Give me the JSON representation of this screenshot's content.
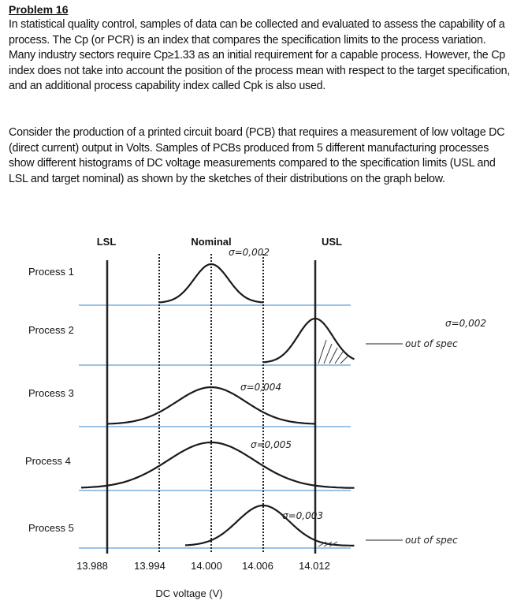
{
  "problem_title": "Problem 16",
  "paragraphs": [
    "In statistical quality control, samples of data can be collected and evaluated to assess the capability of a process. The Cp (or PCR) is an index that compares the specification limits to the process variation.  Many industry sectors require Cp≥1.33 as an initial requirement for a capable process. However, the Cp index does not take into account the position of the process mean with respect to the target specification, and an additional process capability index called Cpk is also used.",
    "Consider the production of a printed circuit board (PCB) that requires a measurement of low voltage DC (direct current) output in Volts.  Samples of PCBs produced from 5 different manufacturing processes show different histograms of DC voltage measurements compared to the specification limits (USL and LSL and target nominal) as shown by the sketches of their distributions on the graph below."
  ],
  "chart_data": {
    "type": "line",
    "xlabel": "DC voltage (V)",
    "x_ticks": [
      "13.988",
      "13.994",
      "14.000",
      "14.006",
      "14.012"
    ],
    "xlim": [
      13.985,
      14.016
    ],
    "spec_lines": [
      {
        "label": "LSL",
        "value": 13.988,
        "style": "solid"
      },
      {
        "label": "",
        "value": 13.994,
        "style": "dotted"
      },
      {
        "label": "Nominal",
        "value": 14.0,
        "style": "dotted"
      },
      {
        "label": "",
        "value": 14.006,
        "style": "dotted"
      },
      {
        "label": "USL",
        "value": 14.012,
        "style": "solid"
      }
    ],
    "baseline_color": "#9cc3e6",
    "series": [
      {
        "name": "Process 1",
        "mean": 14.0,
        "sigma": 0.002,
        "annotation": "σ=0,002",
        "note": ""
      },
      {
        "name": "Process 2",
        "mean": 14.012,
        "sigma": 0.002,
        "annotation": "σ=0,002",
        "note": "out of spec"
      },
      {
        "name": "Process 3",
        "mean": 14.0,
        "sigma": 0.004,
        "annotation": "σ=0,004",
        "note": ""
      },
      {
        "name": "Process 4",
        "mean": 14.0,
        "sigma": 0.005,
        "annotation": "σ=0,005",
        "note": ""
      },
      {
        "name": "Process 5",
        "mean": 14.006,
        "sigma": 0.003,
        "annotation": "σ=0,003",
        "note": "out of spec"
      }
    ]
  }
}
